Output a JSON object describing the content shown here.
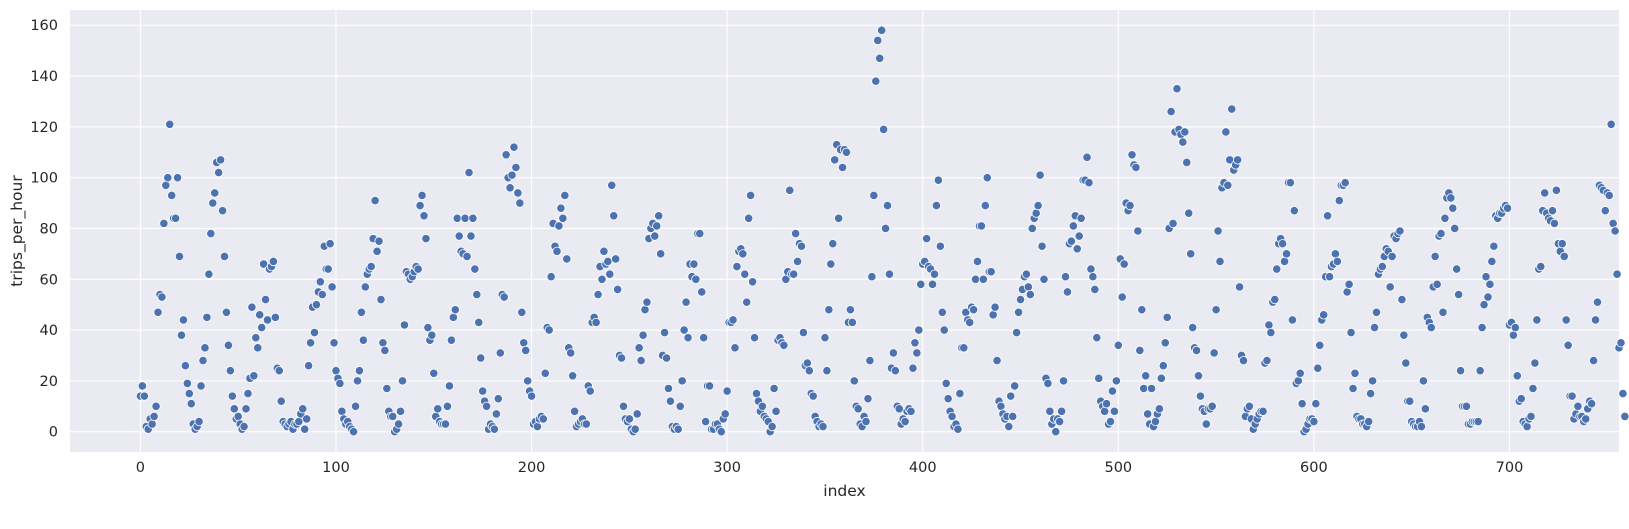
{
  "chart_data": {
    "type": "scatter",
    "title": "",
    "xlabel": "index",
    "ylabel": "trips_per_hour",
    "xlim": [
      -36,
      756
    ],
    "ylim": [
      -8,
      166
    ],
    "x_ticks": [
      0,
      100,
      200,
      300,
      400,
      500,
      600,
      700
    ],
    "y_ticks": [
      0,
      20,
      40,
      60,
      80,
      100,
      120,
      140,
      160
    ],
    "grid": true,
    "background_color": "#eaeaf2",
    "grid_color": "#ffffff",
    "marker_color": "#4c72b0",
    "series": [
      {
        "x_start": 0,
        "y": [
          14,
          18,
          14,
          2,
          1,
          5,
          3,
          6,
          10,
          47,
          54,
          53,
          82,
          97,
          100,
          121,
          93,
          84,
          84,
          100,
          69,
          38,
          44,
          26,
          19,
          15,
          11,
          3,
          1,
          2,
          4,
          18,
          28,
          33,
          45,
          62,
          78,
          90,
          94,
          106,
          102,
          107,
          87,
          69,
          47,
          34,
          24,
          14,
          9,
          5,
          6,
          3,
          1,
          2,
          9,
          15,
          21,
          49,
          22,
          37,
          33,
          46,
          41,
          66,
          52,
          44,
          64,
          65,
          67,
          45,
          25,
          24,
          12,
          4,
          3,
          2,
          3,
          4,
          1,
          3,
          3,
          4,
          7,
          9,
          1,
          5,
          26,
          35,
          49,
          39,
          50,
          55,
          59,
          54,
          73,
          64,
          64,
          74,
          57,
          35,
          24,
          21,
          19,
          8,
          5,
          3,
          4,
          2,
          1,
          0,
          10,
          20,
          24,
          47,
          36,
          57,
          62,
          64,
          65,
          76,
          91,
          71,
          75,
          52,
          35,
          32,
          17,
          8,
          6,
          6,
          0,
          1,
          3,
          8,
          20,
          42,
          63,
          62,
          60,
          61,
          63,
          65,
          64,
          89,
          93,
          85,
          76,
          41,
          36,
          38,
          23,
          6,
          9,
          4,
          3,
          3,
          3,
          10,
          18,
          36,
          45,
          48,
          84,
          77,
          71,
          70,
          84,
          69,
          102,
          77,
          84,
          64,
          54,
          43,
          29,
          16,
          12,
          10,
          1,
          3,
          2,
          1,
          7,
          13,
          31,
          54,
          53,
          109,
          100,
          96,
          101,
          112,
          104,
          94,
          90,
          47,
          35,
          32,
          20,
          16,
          14,
          3,
          4,
          2,
          5,
          6,
          5,
          23,
          41,
          40,
          61,
          82,
          73,
          71,
          81,
          88,
          84,
          93,
          68,
          33,
          31,
          22,
          8,
          2,
          3,
          4,
          5,
          3,
          3,
          18,
          16,
          43,
          45,
          43,
          54,
          65,
          60,
          71,
          66,
          67,
          62,
          97,
          85,
          68,
          56,
          30,
          29,
          10,
          5,
          4,
          5,
          1,
          0,
          1,
          7,
          33,
          28,
          38,
          48,
          51,
          76,
          80,
          82,
          77,
          81,
          85,
          70,
          30,
          39,
          29,
          17,
          12,
          2,
          1,
          2,
          1,
          10,
          20,
          40,
          51,
          37,
          66,
          61,
          66,
          60,
          78,
          78,
          55,
          37,
          4,
          18,
          18,
          1,
          1,
          3,
          3,
          1,
          0,
          5,
          7,
          16,
          43,
          43,
          44,
          33,
          65,
          71,
          72,
          70,
          62,
          51,
          84,
          93,
          59,
          37,
          15,
          12,
          8,
          10,
          6,
          5,
          4,
          0,
          2,
          17,
          8,
          36,
          37,
          35,
          34,
          60,
          63,
          95,
          62,
          62,
          78,
          67,
          74,
          73,
          39,
          26,
          27,
          24,
          15,
          14,
          6,
          4,
          2,
          3,
          2,
          37,
          24,
          48,
          66,
          74,
          107,
          113,
          84,
          111,
          104,
          111,
          110,
          43,
          48,
          43,
          20,
          10,
          9,
          3,
          2,
          6,
          4,
          13,
          28,
          61,
          93,
          138,
          154,
          147,
          158,
          119,
          80,
          89,
          62,
          25,
          31,
          24,
          10,
          9,
          3,
          5,
          4,
          8,
          9,
          8,
          25,
          35,
          31,
          40,
          58,
          66,
          67,
          76,
          65,
          64,
          58,
          62,
          89,
          99,
          73,
          47,
          40,
          19,
          13,
          8,
          6,
          2,
          3,
          1,
          15,
          33,
          33,
          47,
          44,
          43,
          49,
          48,
          60,
          67,
          81,
          81,
          60,
          89,
          100,
          63,
          63,
          46,
          49,
          28,
          12,
          10,
          7,
          5,
          6,
          2,
          14,
          6,
          18,
          39,
          47,
          52,
          56,
          61,
          62,
          57,
          54,
          80,
          84,
          86,
          89,
          101,
          73,
          60,
          21,
          19,
          8,
          3,
          5,
          0,
          5,
          4,
          8,
          20,
          61,
          55,
          74,
          75,
          81,
          85,
          72,
          77,
          84,
          99,
          99,
          108,
          98,
          64,
          61,
          56,
          37,
          21,
          12,
          10,
          8,
          11,
          3,
          4,
          16,
          8,
          20,
          34,
          68,
          53,
          66,
          90,
          87,
          89,
          109,
          105,
          104,
          79,
          32,
          48,
          17,
          22,
          7,
          3,
          17,
          2,
          4,
          7,
          9,
          21,
          26,
          35,
          45,
          80,
          126,
          82,
          118,
          135,
          119,
          117,
          114,
          118,
          106,
          86,
          70,
          41,
          33,
          32,
          22,
          14,
          9,
          8,
          3,
          9,
          9,
          10,
          31,
          48,
          79,
          67,
          96,
          98,
          118,
          97,
          107,
          127,
          103,
          105,
          107,
          57,
          30,
          28,
          6,
          9,
          10,
          5,
          1,
          3,
          5,
          7,
          8,
          8,
          27,
          28,
          42,
          39,
          51,
          52,
          64,
          74,
          76,
          74,
          67,
          70,
          98,
          98,
          44,
          87,
          19,
          20,
          23,
          11,
          0,
          1,
          3,
          5,
          5,
          4,
          11,
          25,
          34,
          44,
          46,
          61,
          85,
          61,
          65,
          66,
          70,
          67,
          91,
          97,
          97,
          98,
          55,
          58,
          39,
          17,
          23,
          6,
          5,
          5,
          3,
          3,
          2,
          4,
          15,
          20,
          41,
          47,
          62,
          64,
          65,
          69,
          72,
          71,
          57,
          69,
          77,
          76,
          78,
          79,
          52,
          38,
          27,
          12,
          12,
          4,
          3,
          2,
          2,
          4,
          2,
          20,
          9,
          45,
          43,
          41,
          57,
          69,
          58,
          77,
          78,
          47,
          84,
          92,
          94,
          92,
          88,
          80,
          64,
          54,
          24,
          10,
          10,
          10,
          3,
          3,
          4,
          4,
          4,
          4,
          24,
          41,
          50,
          61,
          53,
          58,
          67,
          73,
          85,
          84,
          86,
          86,
          88,
          89,
          88,
          42,
          43,
          38,
          41,
          22,
          12,
          13,
          4,
          3,
          2,
          5,
          6,
          17,
          27,
          44,
          64,
          65,
          87,
          94,
          86,
          84,
          83,
          87,
          82,
          95,
          74,
          71,
          74,
          69,
          44,
          34,
          14,
          14,
          5,
          7,
          10,
          6,
          6,
          4,
          5,
          9,
          12,
          11,
          28,
          44,
          51,
          97,
          96,
          95,
          87,
          94,
          93,
          121,
          82,
          79,
          62,
          33,
          35,
          15,
          6
        ]
      }
    ]
  }
}
